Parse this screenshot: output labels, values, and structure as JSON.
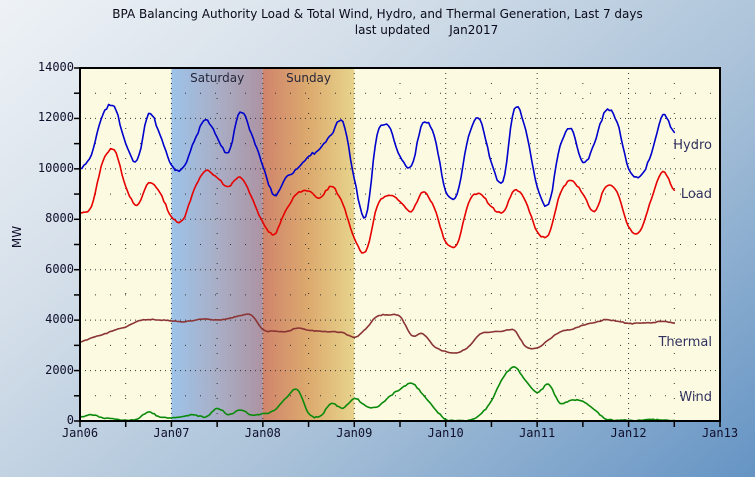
{
  "chart_data": {
    "type": "line",
    "title": "BPA Balancing Authority Load & Total Wind, Hydro, and Thermal Generation, Last 7 days",
    "subtitle": "last updated     Jan2017",
    "ylabel": "MW",
    "ylim": [
      0,
      14000
    ],
    "y_major_ticks": [
      0,
      2000,
      4000,
      6000,
      8000,
      10000,
      12000,
      14000
    ],
    "y_minor_step": 1000,
    "x_range_days": [
      0,
      7
    ],
    "x_tick_labels": [
      "Jan06",
      "Jan07",
      "Jan08",
      "Jan09",
      "Jan10",
      "Jan11",
      "Jan12",
      "Jan13"
    ],
    "x_minor_step_days": 0.5,
    "grid": "dotted",
    "legend_position": "inside-right",
    "weekend_bands": [
      {
        "label": "Saturday",
        "start_day": 1,
        "end_day": 2,
        "gradient": [
          "#9dc3e9",
          "#a9aec6",
          "#ac93a3"
        ]
      },
      {
        "label": "Sunday",
        "start_day": 2,
        "end_day": 3,
        "gradient": [
          "#d0846c",
          "#dcaa6e",
          "#e7d48c"
        ]
      }
    ],
    "sampling": {
      "start_day": 0,
      "step_days": 0.125,
      "units": "MW",
      "note": "days measured from Jan06"
    },
    "series": [
      {
        "name": "Hydro",
        "color": "#0000cc",
        "label_value_mw": 10900,
        "values": [
          10000,
          10550,
          12150,
          12480,
          11000,
          10350,
          12200,
          11350,
          10150,
          10050,
          11100,
          11950,
          11250,
          10650,
          12250,
          11400,
          10100,
          8950,
          9650,
          10000,
          10500,
          10800,
          11350,
          11880,
          9600,
          8100,
          11350,
          11700,
          10500,
          10120,
          11830,
          11300,
          9100,
          9000,
          11300,
          11950,
          10250,
          9500,
          12380,
          11550,
          9300,
          8600,
          10900,
          11600,
          10250,
          11000,
          12300,
          11850,
          10000,
          9700,
          10600,
          12150,
          11450
        ]
      },
      {
        "name": "Load",
        "color": "#e60000",
        "label_value_mw": 8950,
        "values": [
          8250,
          8500,
          10300,
          10750,
          9300,
          8550,
          9450,
          9050,
          8100,
          7980,
          9200,
          9930,
          9650,
          9300,
          9680,
          8900,
          7880,
          7400,
          8350,
          9020,
          9120,
          8850,
          9300,
          8600,
          7250,
          6720,
          8500,
          8950,
          8700,
          8300,
          9080,
          8450,
          7100,
          7010,
          8650,
          9020,
          8500,
          8280,
          9150,
          8700,
          7520,
          7380,
          9000,
          9540,
          9000,
          8300,
          9280,
          9080,
          7700,
          7530,
          8800,
          9900,
          9150
        ]
      },
      {
        "name": "Thermal",
        "color": "#8b3434",
        "label_value_mw": 3100,
        "values": [
          3130,
          3300,
          3430,
          3600,
          3720,
          3950,
          4020,
          4000,
          3970,
          3930,
          3990,
          4050,
          4010,
          4060,
          4180,
          4200,
          3620,
          3560,
          3540,
          3680,
          3600,
          3560,
          3540,
          3510,
          3320,
          3650,
          4150,
          4200,
          4150,
          3400,
          3460,
          2950,
          2760,
          2700,
          2950,
          3450,
          3530,
          3560,
          3600,
          2950,
          2900,
          3220,
          3530,
          3630,
          3800,
          3900,
          4020,
          3960,
          3870,
          3880,
          3890,
          3950,
          3890
        ]
      },
      {
        "name": "Wind",
        "color": "#0a8a0a",
        "label_value_mw": 900,
        "values": [
          160,
          250,
          120,
          80,
          40,
          70,
          360,
          150,
          120,
          180,
          240,
          160,
          500,
          250,
          430,
          240,
          300,
          420,
          900,
          1250,
          300,
          190,
          700,
          500,
          900,
          600,
          550,
          950,
          1250,
          1500,
          1050,
          500,
          60,
          20,
          30,
          250,
          800,
          1700,
          2150,
          1600,
          1120,
          1460,
          700,
          830,
          780,
          450,
          70,
          30,
          25,
          30,
          60,
          30,
          25
        ]
      }
    ]
  },
  "colors": {
    "plot_bg": "#fcfbe2",
    "axis": "#000000",
    "grid": "#333333",
    "tick_text": "#10102c",
    "series_label_text": "#32325f",
    "band_label_text": "#26263a",
    "title_text": "#0a0a1a",
    "frame_gradient_top_left": "#eef2f6",
    "frame_gradient_bottom_right": "#6594c4"
  }
}
